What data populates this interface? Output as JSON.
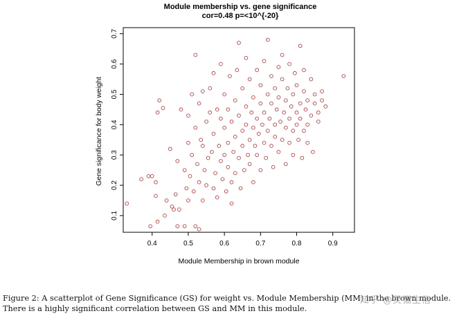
{
  "chart_data": {
    "type": "scatter",
    "title": "Module membership vs. gene significance",
    "subtitle": "cor=0.48 p=<10^{-20}",
    "xlabel": "Module Membership in brown module",
    "ylabel": "Gene significance for body weight",
    "xlim": [
      0.32,
      0.96
    ],
    "ylim": [
      0.045,
      0.72
    ],
    "xticks": [
      "0.4",
      "0.5",
      "0.6",
      "0.7",
      "0.8",
      "0.9"
    ],
    "yticks": [
      "0.1",
      "0.2",
      "0.3",
      "0.4",
      "0.5",
      "0.6",
      "0.7"
    ],
    "grid": false,
    "marker_color": "#a94442",
    "points": [
      [
        0.33,
        0.14
      ],
      [
        0.37,
        0.22
      ],
      [
        0.39,
        0.23
      ],
      [
        0.395,
        0.065
      ],
      [
        0.4,
        0.23
      ],
      [
        0.41,
        0.165
      ],
      [
        0.41,
        0.21
      ],
      [
        0.415,
        0.08
      ],
      [
        0.415,
        0.44
      ],
      [
        0.42,
        0.48
      ],
      [
        0.43,
        0.455
      ],
      [
        0.435,
        0.1
      ],
      [
        0.44,
        0.15
      ],
      [
        0.45,
        0.32
      ],
      [
        0.455,
        0.13
      ],
      [
        0.46,
        0.12
      ],
      [
        0.465,
        0.17
      ],
      [
        0.47,
        0.065
      ],
      [
        0.47,
        0.28
      ],
      [
        0.475,
        0.12
      ],
      [
        0.48,
        0.45
      ],
      [
        0.49,
        0.065
      ],
      [
        0.49,
        0.25
      ],
      [
        0.495,
        0.19
      ],
      [
        0.5,
        0.43
      ],
      [
        0.5,
        0.34
      ],
      [
        0.5,
        0.15
      ],
      [
        0.505,
        0.23
      ],
      [
        0.51,
        0.5
      ],
      [
        0.51,
        0.3
      ],
      [
        0.515,
        0.18
      ],
      [
        0.52,
        0.065
      ],
      [
        0.52,
        0.39
      ],
      [
        0.52,
        0.63
      ],
      [
        0.525,
        0.27
      ],
      [
        0.53,
        0.055
      ],
      [
        0.53,
        0.47
      ],
      [
        0.53,
        0.21
      ],
      [
        0.535,
        0.35
      ],
      [
        0.54,
        0.33
      ],
      [
        0.54,
        0.51
      ],
      [
        0.54,
        0.15
      ],
      [
        0.545,
        0.25
      ],
      [
        0.55,
        0.41
      ],
      [
        0.55,
        0.2
      ],
      [
        0.555,
        0.29
      ],
      [
        0.56,
        0.44
      ],
      [
        0.56,
        0.52
      ],
      [
        0.565,
        0.31
      ],
      [
        0.57,
        0.19
      ],
      [
        0.57,
        0.37
      ],
      [
        0.57,
        0.57
      ],
      [
        0.575,
        0.24
      ],
      [
        0.58,
        0.45
      ],
      [
        0.58,
        0.16
      ],
      [
        0.585,
        0.33
      ],
      [
        0.59,
        0.6
      ],
      [
        0.59,
        0.28
      ],
      [
        0.59,
        0.42
      ],
      [
        0.595,
        0.22
      ],
      [
        0.6,
        0.39
      ],
      [
        0.6,
        0.5
      ],
      [
        0.6,
        0.3
      ],
      [
        0.605,
        0.18
      ],
      [
        0.61,
        0.45
      ],
      [
        0.61,
        0.34
      ],
      [
        0.61,
        0.26
      ],
      [
        0.615,
        0.56
      ],
      [
        0.62,
        0.21
      ],
      [
        0.62,
        0.41
      ],
      [
        0.62,
        0.14
      ],
      [
        0.625,
        0.31
      ],
      [
        0.63,
        0.48
      ],
      [
        0.63,
        0.36
      ],
      [
        0.63,
        0.24
      ],
      [
        0.635,
        0.58
      ],
      [
        0.64,
        0.67
      ],
      [
        0.64,
        0.29
      ],
      [
        0.64,
        0.43
      ],
      [
        0.645,
        0.19
      ],
      [
        0.65,
        0.38
      ],
      [
        0.65,
        0.52
      ],
      [
        0.65,
        0.33
      ],
      [
        0.655,
        0.25
      ],
      [
        0.66,
        0.46
      ],
      [
        0.66,
        0.4
      ],
      [
        0.66,
        0.62
      ],
      [
        0.665,
        0.3
      ],
      [
        0.67,
        0.35
      ],
      [
        0.67,
        0.55
      ],
      [
        0.67,
        0.27
      ],
      [
        0.675,
        0.44
      ],
      [
        0.68,
        0.21
      ],
      [
        0.68,
        0.39
      ],
      [
        0.68,
        0.49
      ],
      [
        0.685,
        0.33
      ],
      [
        0.69,
        0.58
      ],
      [
        0.69,
        0.42
      ],
      [
        0.69,
        0.3
      ],
      [
        0.695,
        0.37
      ],
      [
        0.7,
        0.47
      ],
      [
        0.7,
        0.25
      ],
      [
        0.7,
        0.53
      ],
      [
        0.705,
        0.4
      ],
      [
        0.71,
        0.34
      ],
      [
        0.71,
        0.61
      ],
      [
        0.71,
        0.44
      ],
      [
        0.715,
        0.29
      ],
      [
        0.72,
        0.5
      ],
      [
        0.72,
        0.38
      ],
      [
        0.72,
        0.68
      ],
      [
        0.725,
        0.42
      ],
      [
        0.73,
        0.33
      ],
      [
        0.73,
        0.56
      ],
      [
        0.73,
        0.47
      ],
      [
        0.735,
        0.26
      ],
      [
        0.74,
        0.4
      ],
      [
        0.74,
        0.52
      ],
      [
        0.74,
        0.36
      ],
      [
        0.745,
        0.45
      ],
      [
        0.75,
        0.59
      ],
      [
        0.75,
        0.31
      ],
      [
        0.75,
        0.49
      ],
      [
        0.755,
        0.41
      ],
      [
        0.76,
        0.35
      ],
      [
        0.76,
        0.55
      ],
      [
        0.76,
        0.63
      ],
      [
        0.765,
        0.44
      ],
      [
        0.77,
        0.39
      ],
      [
        0.77,
        0.48
      ],
      [
        0.77,
        0.27
      ],
      [
        0.775,
        0.52
      ],
      [
        0.78,
        0.42
      ],
      [
        0.78,
        0.34
      ],
      [
        0.78,
        0.6
      ],
      [
        0.785,
        0.46
      ],
      [
        0.79,
        0.38
      ],
      [
        0.79,
        0.5
      ],
      [
        0.79,
        0.3
      ],
      [
        0.795,
        0.57
      ],
      [
        0.8,
        0.44
      ],
      [
        0.8,
        0.4
      ],
      [
        0.8,
        0.53
      ],
      [
        0.805,
        0.35
      ],
      [
        0.81,
        0.47
      ],
      [
        0.81,
        0.66
      ],
      [
        0.81,
        0.42
      ],
      [
        0.815,
        0.29
      ],
      [
        0.82,
        0.51
      ],
      [
        0.82,
        0.38
      ],
      [
        0.82,
        0.58
      ],
      [
        0.825,
        0.45
      ],
      [
        0.83,
        0.4
      ],
      [
        0.83,
        0.34
      ],
      [
        0.83,
        0.48
      ],
      [
        0.84,
        0.55
      ],
      [
        0.84,
        0.43
      ],
      [
        0.845,
        0.31
      ],
      [
        0.85,
        0.5
      ],
      [
        0.85,
        0.47
      ],
      [
        0.86,
        0.44
      ],
      [
        0.86,
        0.41
      ],
      [
        0.87,
        0.48
      ],
      [
        0.87,
        0.51
      ],
      [
        0.88,
        0.46
      ],
      [
        0.93,
        0.56
      ]
    ]
  },
  "caption": {
    "line1": "Figure 2: A scatterplot of Gene Significance (GS) for weight vs. Module Membership (MM) in the brown module.",
    "line2": "There is a highly significant correlation between GS and MM in this module."
  },
  "watermark": "知乎 @灵猫生信"
}
